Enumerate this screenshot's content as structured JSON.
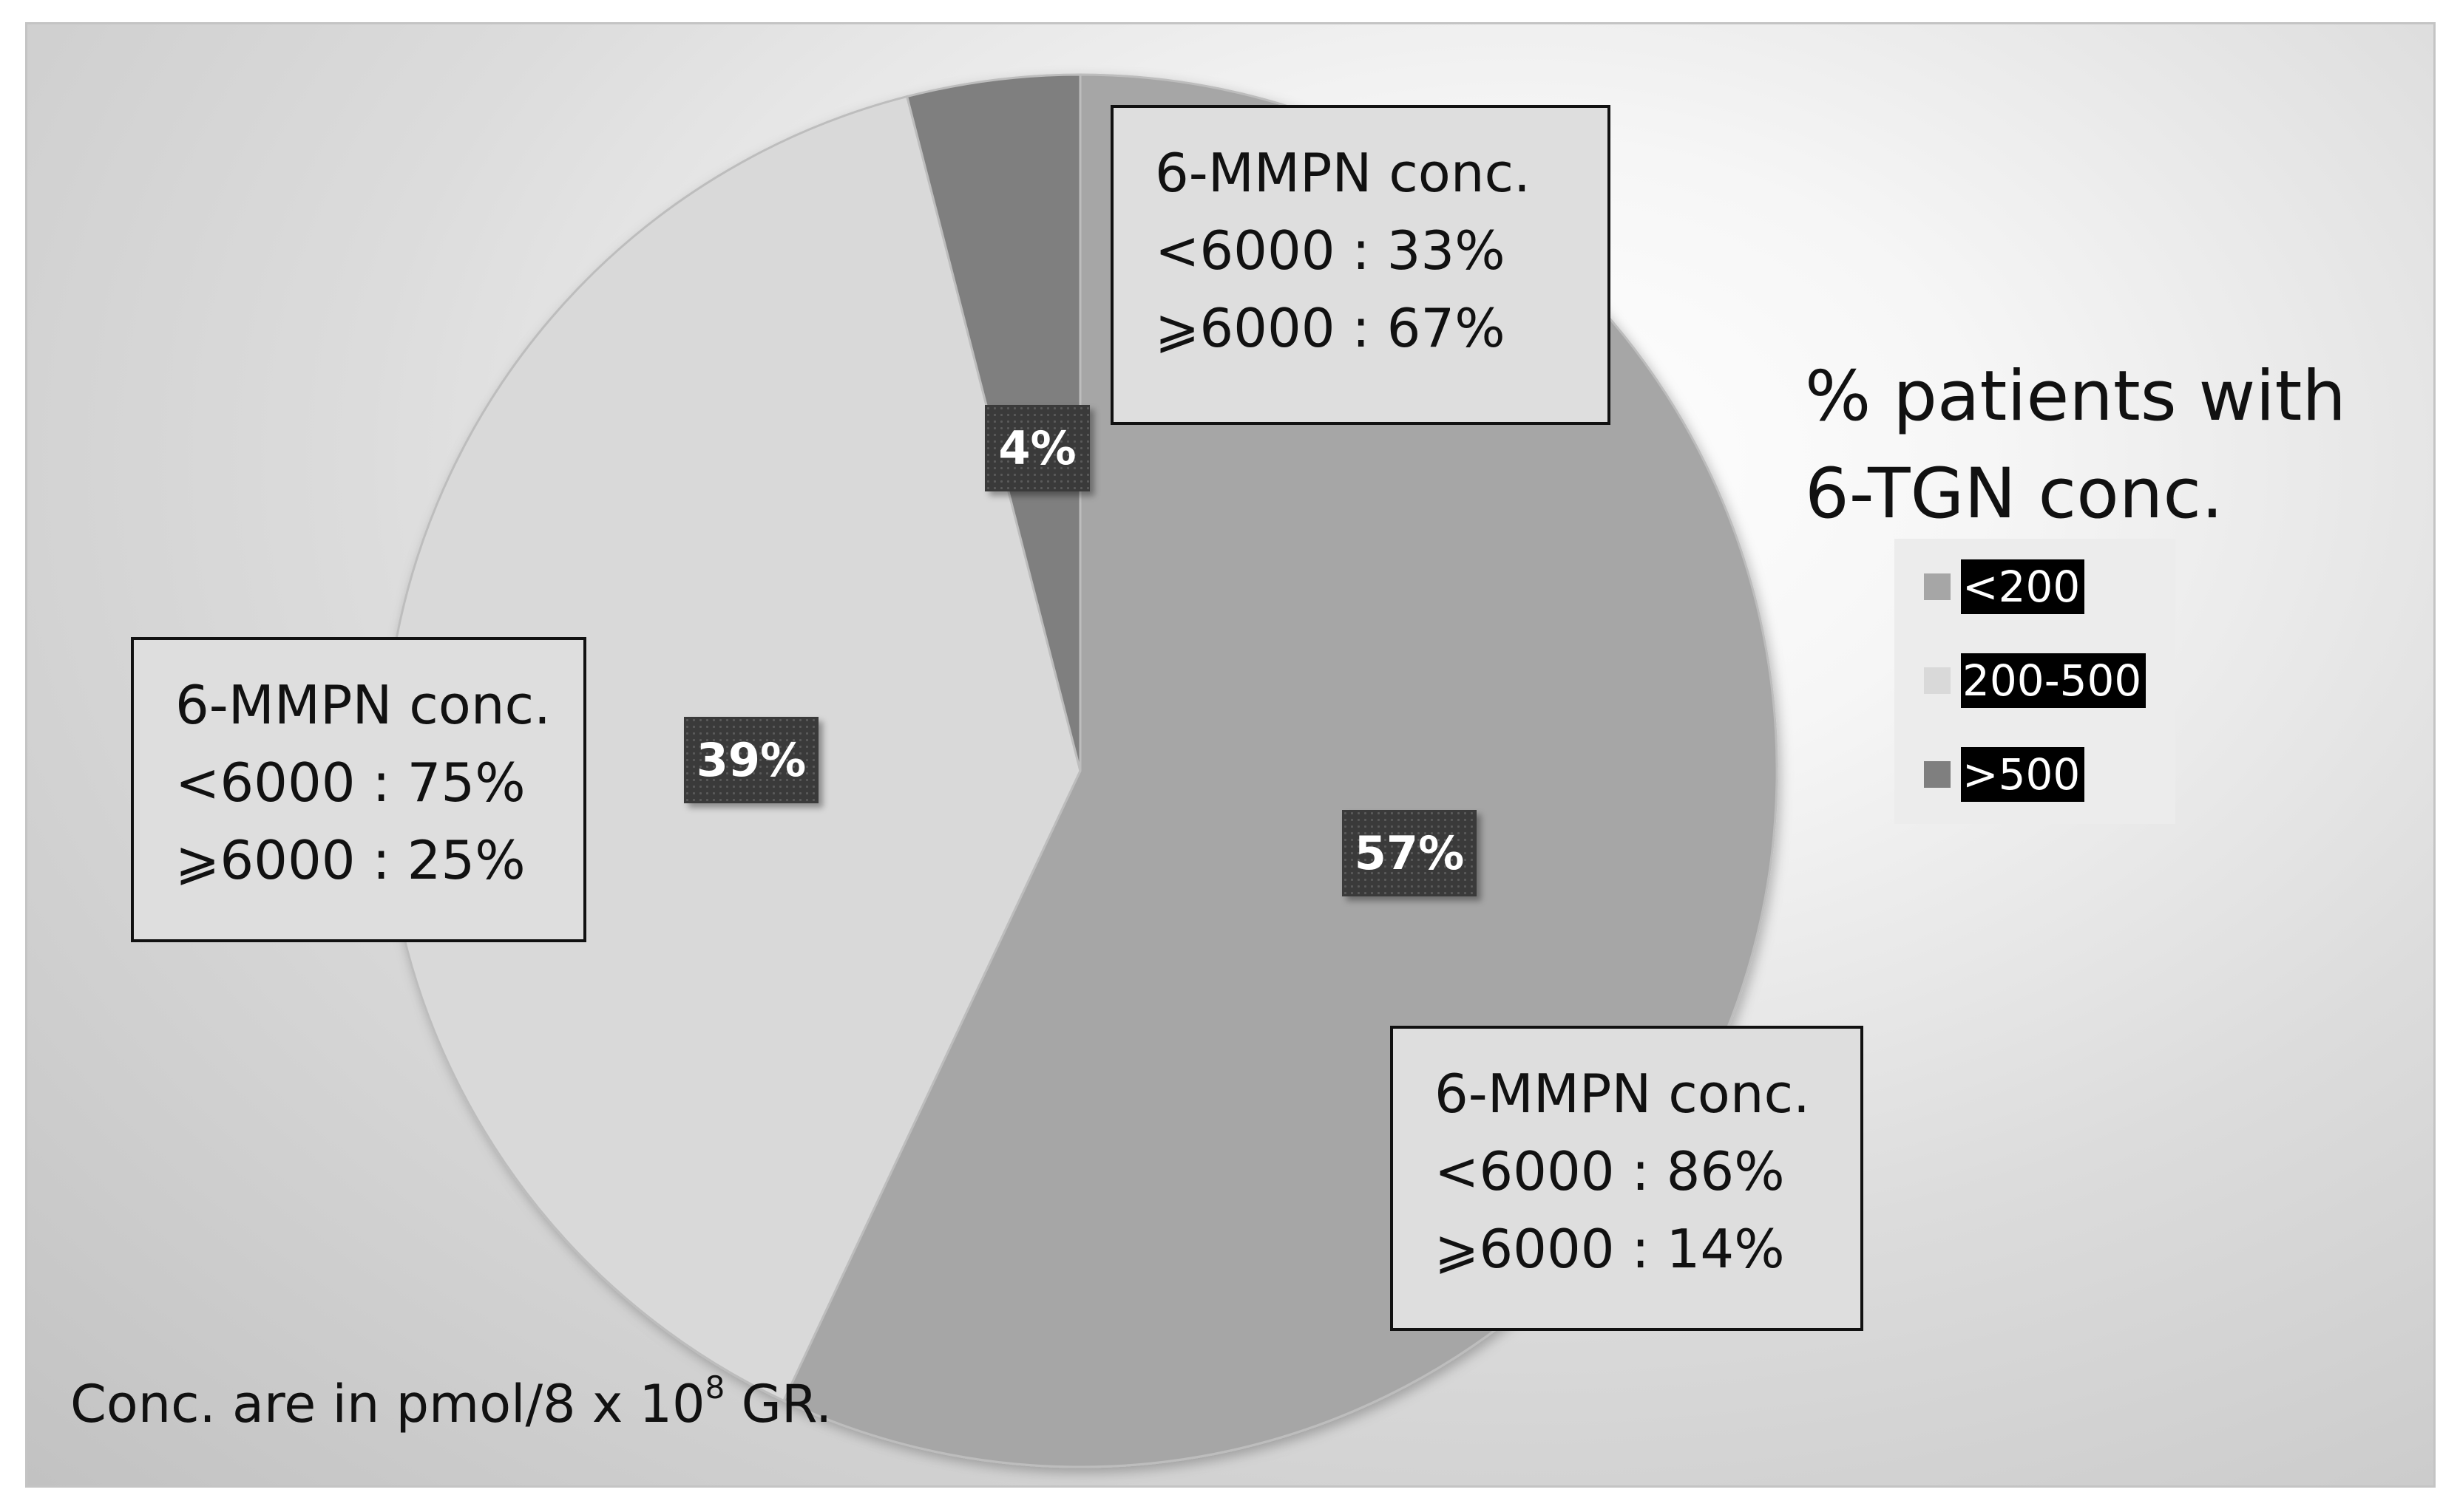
{
  "chart_data": {
    "type": "pie",
    "legend_title_lines": [
      "% patients with",
      "6-TGN conc."
    ],
    "legend_position": "right",
    "slices": [
      {
        "label": "<200",
        "value": 57,
        "display": "57%",
        "color": "#a6a6a6"
      },
      {
        "label": "200-500",
        "value": 39,
        "display": "39%",
        "color": "#d9d9d9"
      },
      {
        "label": ">500",
        "value": 4,
        "display": "4%",
        "color": "#7f7f7f"
      }
    ],
    "annotations": [
      {
        "slice": ">500",
        "lines": [
          "6-MMPN conc.",
          "<6000 : 33%",
          "⩾6000 : 67%"
        ]
      },
      {
        "slice": "200-500",
        "lines": [
          "6-MMPN conc.",
          "<6000 : 75%",
          "⩾6000 : 25%"
        ]
      },
      {
        "slice": "<200",
        "lines": [
          "6-MMPN conc.",
          "<6000 : 86%",
          "⩾6000 : 14%"
        ]
      }
    ],
    "footnote": {
      "text": "Conc. are in pmol/8 x 10",
      "superscript": "8",
      "suffix": " GR."
    }
  }
}
